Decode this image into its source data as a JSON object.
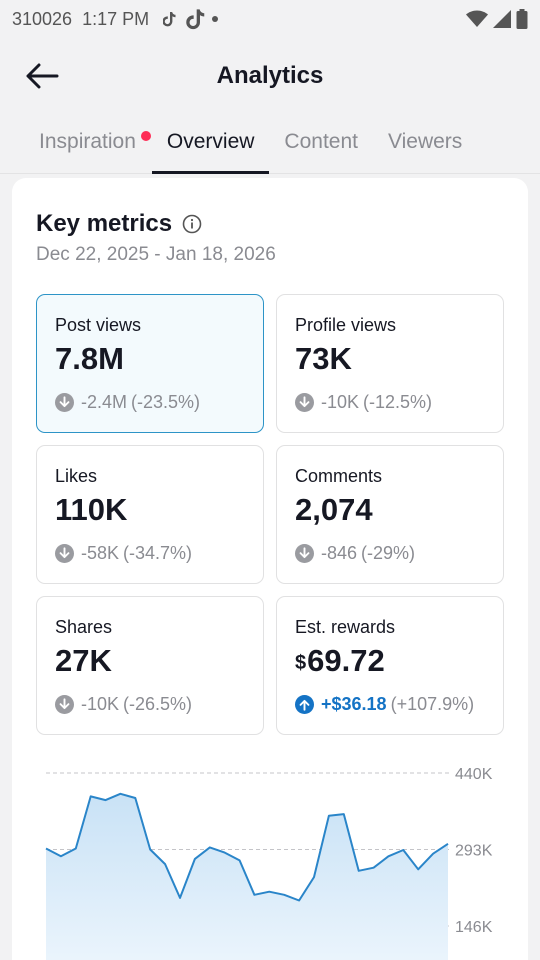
{
  "status_bar": {
    "carrier": "310026",
    "time": "1:17 PM",
    "icons": [
      "tiktok-note-icon",
      "tiktok-logo-icon",
      "dot-icon",
      "wifi-icon",
      "signal-icon",
      "battery-icon"
    ]
  },
  "header": {
    "back_icon": "arrow-left-icon",
    "title": "Analytics"
  },
  "tabs": [
    {
      "label": "Inspiration",
      "active": false,
      "has_dot": true
    },
    {
      "label": "Overview",
      "active": true,
      "has_dot": false
    },
    {
      "label": "Content",
      "active": false,
      "has_dot": false
    },
    {
      "label": "Viewers",
      "active": false,
      "has_dot": false
    }
  ],
  "key_metrics": {
    "title": "Key metrics",
    "info_icon": "info-icon",
    "date_range": "Dec 22, 2025 - Jan 18, 2026",
    "items": [
      {
        "label": "Post views",
        "value": "7.8M",
        "delta": "-2.4M",
        "pct": "(-23.5%)",
        "direction": "down",
        "selected": true
      },
      {
        "label": "Profile views",
        "value": "73K",
        "delta": "-10K",
        "pct": "(-12.5%)",
        "direction": "down",
        "selected": false
      },
      {
        "label": "Likes",
        "value": "110K",
        "delta": "-58K",
        "pct": "(-34.7%)",
        "direction": "down",
        "selected": false
      },
      {
        "label": "Comments",
        "value": "2,074",
        "delta": "-846",
        "pct": "(-29%)",
        "direction": "down",
        "selected": false
      },
      {
        "label": "Shares",
        "value": "27K",
        "delta": "-10K",
        "pct": "(-26.5%)",
        "direction": "down",
        "selected": false
      },
      {
        "label": "Est. rewards",
        "currency": "$",
        "value": "69.72",
        "delta": "+$36.18",
        "pct": "(+107.9%)",
        "direction": "up",
        "selected": false
      }
    ]
  },
  "colors": {
    "accent_up": "#1473c5",
    "selected_border": "#2d94c7",
    "notification_dot": "#fe2c55",
    "line": "#2a85c9"
  },
  "chart_data": {
    "type": "area",
    "series": [
      {
        "values": [
          295,
          280,
          295,
          395,
          388,
          400,
          392,
          293,
          265,
          200,
          275,
          297,
          287,
          272,
          206,
          212,
          206,
          195,
          240,
          358,
          361,
          252,
          258,
          280,
          292,
          255,
          285,
          304
        ]
      }
    ],
    "y_ticks": [
      "440K",
      "293K",
      "146K"
    ],
    "ylim": [
      146,
      440
    ],
    "grid": true
  }
}
